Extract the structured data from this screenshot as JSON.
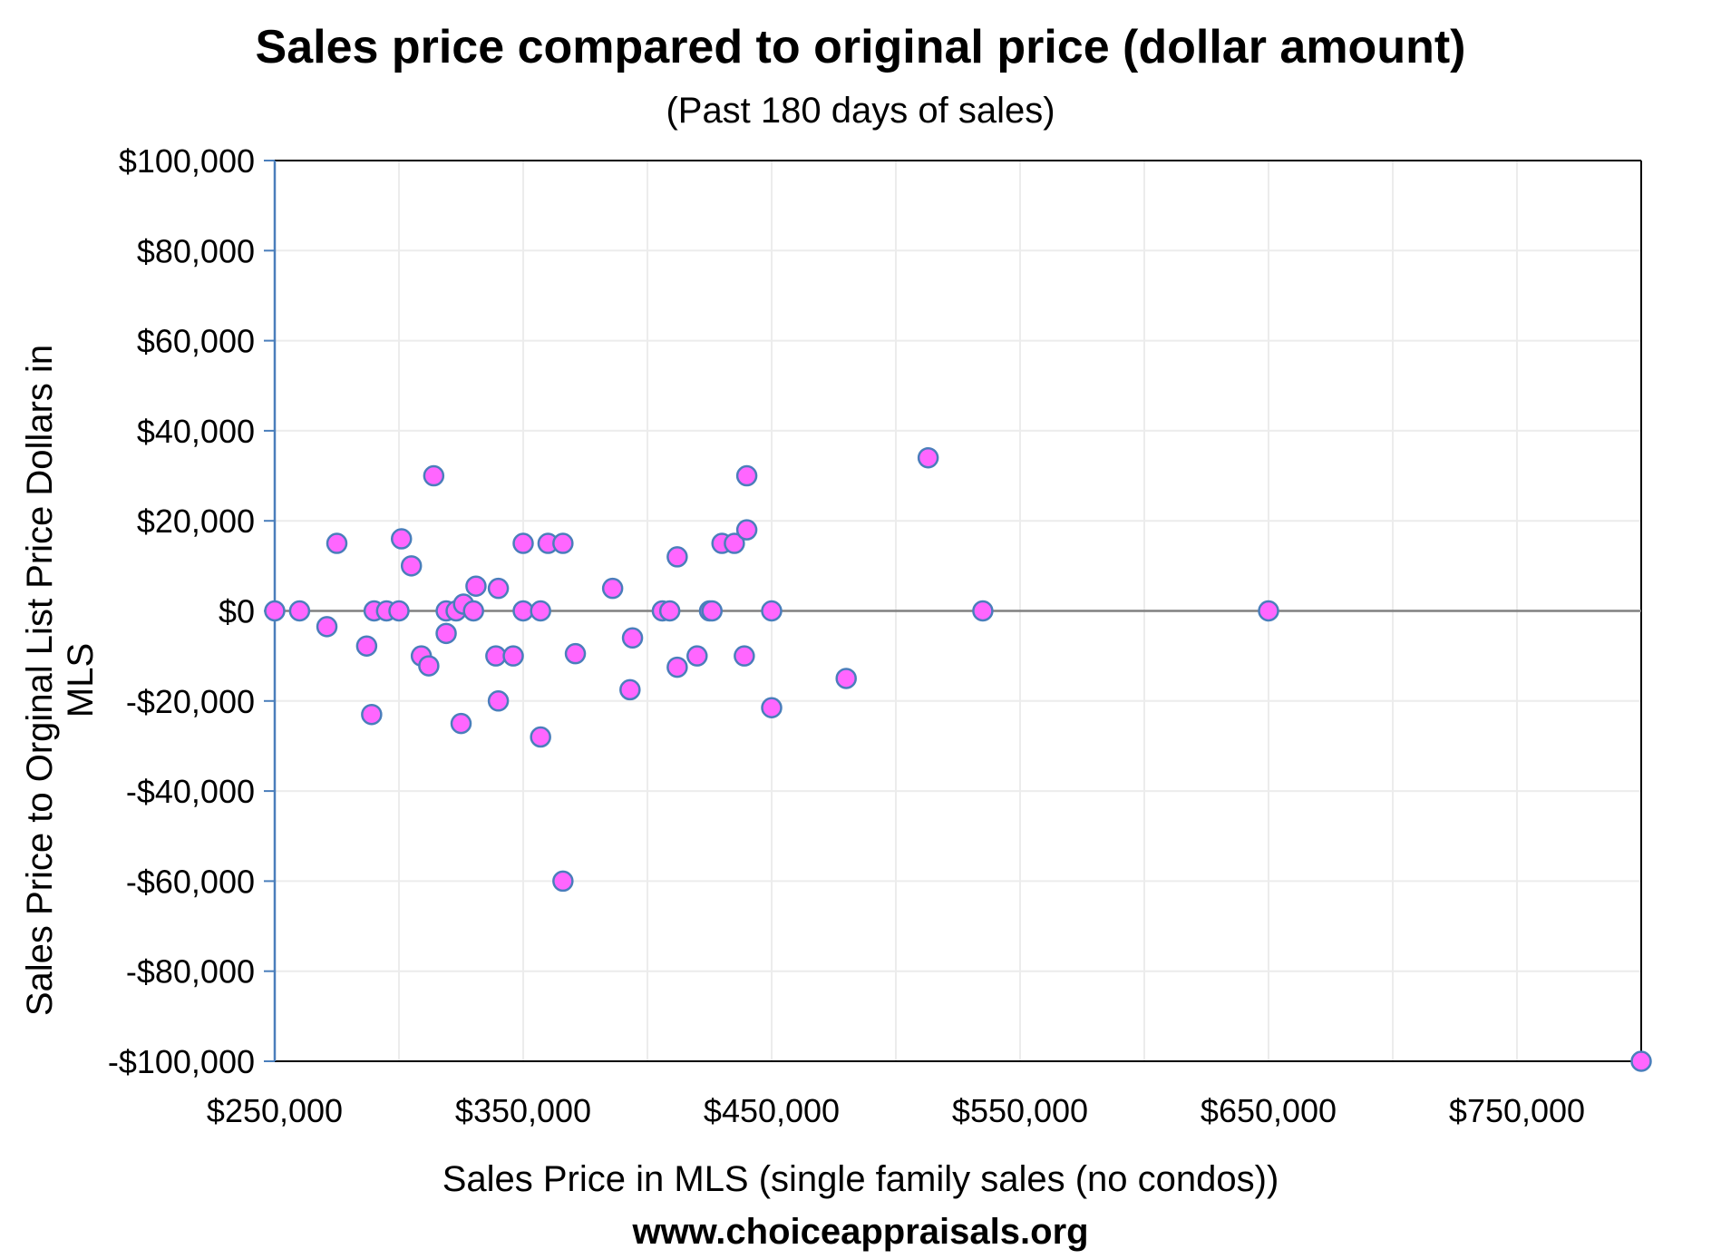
{
  "chart_data": {
    "type": "scatter",
    "title": "Sales price compared to original price (dollar amount)",
    "subtitle": "(Past 180 days of sales)",
    "xlabel": "Sales Price in MLS (single family sales (no condos))",
    "ylabel": "Sales Price to Orginal List Price Dollars in MLS",
    "xlim": [
      250000,
      800000
    ],
    "ylim": [
      -100000,
      100000
    ],
    "x_ticks": [
      250000,
      350000,
      450000,
      550000,
      650000,
      750000
    ],
    "x_tick_labels": [
      "$250,000",
      "$350,000",
      "$450,000",
      "$550,000",
      "$650,000",
      "$750,000"
    ],
    "y_ticks": [
      100000,
      80000,
      60000,
      40000,
      20000,
      0,
      -20000,
      -40000,
      -60000,
      -80000,
      -100000
    ],
    "y_tick_labels": [
      "$100,000",
      "$80,000",
      "$60,000",
      "$40,000",
      "$20,000",
      "$0",
      "-$20,000",
      "-$40,000",
      "-$60,000",
      "-$80,000",
      "-$100,000"
    ],
    "grid": true,
    "legend": "none",
    "marker_fill": "#ff66ff",
    "marker_stroke": "#4a7ebb",
    "series": [
      {
        "points": [
          [
            250000,
            0
          ],
          [
            260000,
            0
          ],
          [
            271000,
            -3500
          ],
          [
            275000,
            15000
          ],
          [
            287000,
            -7800
          ],
          [
            289000,
            -23000
          ],
          [
            290000,
            0
          ],
          [
            295000,
            0
          ],
          [
            300000,
            0
          ],
          [
            301000,
            16000
          ],
          [
            305000,
            10000
          ],
          [
            309000,
            -10000
          ],
          [
            312000,
            -12200
          ],
          [
            314000,
            30000
          ],
          [
            319000,
            0
          ],
          [
            319000,
            -5000
          ],
          [
            323000,
            0
          ],
          [
            325000,
            -25000
          ],
          [
            326000,
            1500
          ],
          [
            330000,
            0
          ],
          [
            331000,
            5500
          ],
          [
            339000,
            -10000
          ],
          [
            340000,
            5000
          ],
          [
            340000,
            -20000
          ],
          [
            346000,
            -10000
          ],
          [
            350000,
            15000
          ],
          [
            350000,
            0
          ],
          [
            357000,
            0
          ],
          [
            357000,
            -28000
          ],
          [
            360000,
            15000
          ],
          [
            366000,
            15000
          ],
          [
            366000,
            -60000
          ],
          [
            371000,
            -9500
          ],
          [
            386000,
            5000
          ],
          [
            393000,
            -17500
          ],
          [
            394000,
            -6000
          ],
          [
            406000,
            0
          ],
          [
            409000,
            0
          ],
          [
            412000,
            12000
          ],
          [
            412000,
            -12500
          ],
          [
            420000,
            -10000
          ],
          [
            425000,
            0
          ],
          [
            426000,
            0
          ],
          [
            430000,
            15000
          ],
          [
            435000,
            15000
          ],
          [
            440000,
            30000
          ],
          [
            440000,
            18000
          ],
          [
            439000,
            -10000
          ],
          [
            450000,
            0
          ],
          [
            450000,
            -21500
          ],
          [
            480000,
            -15000
          ],
          [
            513000,
            34000
          ],
          [
            535000,
            0
          ],
          [
            650000,
            0
          ],
          [
            800000,
            -100000
          ]
        ]
      }
    ]
  },
  "footer": {
    "credit": "www.choiceappraisals.org"
  }
}
